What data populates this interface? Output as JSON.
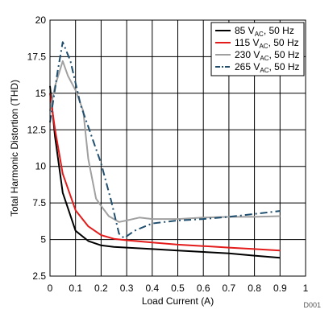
{
  "chart_data": {
    "type": "line",
    "title": "",
    "xlabel": "Load Current (A)",
    "ylabel": "Total Harmonic Distortion (THD)",
    "xlim": [
      0,
      1
    ],
    "ylim": [
      2.5,
      20
    ],
    "xticks": [
      "0",
      "0.1",
      "0.2",
      "0.3",
      "0.4",
      "0.5",
      "0.6",
      "0.7",
      "0.8",
      "0.9",
      "1"
    ],
    "yticks": [
      "2.5",
      "5",
      "7.5",
      "10",
      "12.5",
      "15",
      "17.5",
      "20"
    ],
    "grid": true,
    "legend_position": "top-right",
    "figure_code": "D001",
    "series": [
      {
        "name": "85 V",
        "name_sub": "AC",
        "name_rest": ", 50 Hz",
        "color": "#000000",
        "dash": "solid",
        "x": [
          0,
          0.02,
          0.05,
          0.1,
          0.15,
          0.2,
          0.25,
          0.3,
          0.4,
          0.5,
          0.6,
          0.7,
          0.8,
          0.9
        ],
        "values": [
          15.5,
          12,
          8.2,
          5.6,
          4.9,
          4.6,
          4.5,
          4.45,
          4.35,
          4.25,
          4.15,
          4.05,
          3.9,
          3.75
        ]
      },
      {
        "name": "115 V",
        "name_sub": "AC",
        "name_rest": ", 50 Hz",
        "color": "#e31b1b",
        "dash": "solid",
        "x": [
          0,
          0.02,
          0.05,
          0.1,
          0.15,
          0.2,
          0.25,
          0.3,
          0.4,
          0.5,
          0.6,
          0.7,
          0.8,
          0.9
        ],
        "values": [
          15,
          12.5,
          9.5,
          7,
          5.9,
          5.3,
          5.05,
          4.95,
          4.8,
          4.65,
          4.55,
          4.45,
          4.35,
          4.25
        ]
      },
      {
        "name": "230 V",
        "name_sub": "AC",
        "name_rest": ", 50 Hz",
        "color": "#a0a0a0",
        "dash": "solid",
        "x": [
          0,
          0.02,
          0.05,
          0.07,
          0.1,
          0.13,
          0.15,
          0.18,
          0.2,
          0.23,
          0.27,
          0.3,
          0.35,
          0.4,
          0.5,
          0.6,
          0.7,
          0.8,
          0.9
        ],
        "values": [
          13.8,
          15.5,
          17.2,
          16.2,
          15.2,
          13.8,
          10.5,
          7.8,
          7.3,
          6.6,
          6.2,
          6.3,
          6.5,
          6.4,
          6.4,
          6.5,
          6.55,
          6.55,
          6.6
        ]
      },
      {
        "name": "265 V",
        "name_sub": "AC",
        "name_rest": ", 50 Hz",
        "color": "#1f4e6e",
        "dash": "dashdot",
        "x": [
          0,
          0.03,
          0.05,
          0.08,
          0.12,
          0.16,
          0.2,
          0.24,
          0.27,
          0.29,
          0.33,
          0.4,
          0.5,
          0.6,
          0.7,
          0.8,
          0.9
        ],
        "values": [
          13,
          16.5,
          18.5,
          17.2,
          14.2,
          12.2,
          10.2,
          7.6,
          5.4,
          5.1,
          5.6,
          6.1,
          6.3,
          6.4,
          6.55,
          6.75,
          6.95
        ]
      }
    ]
  }
}
